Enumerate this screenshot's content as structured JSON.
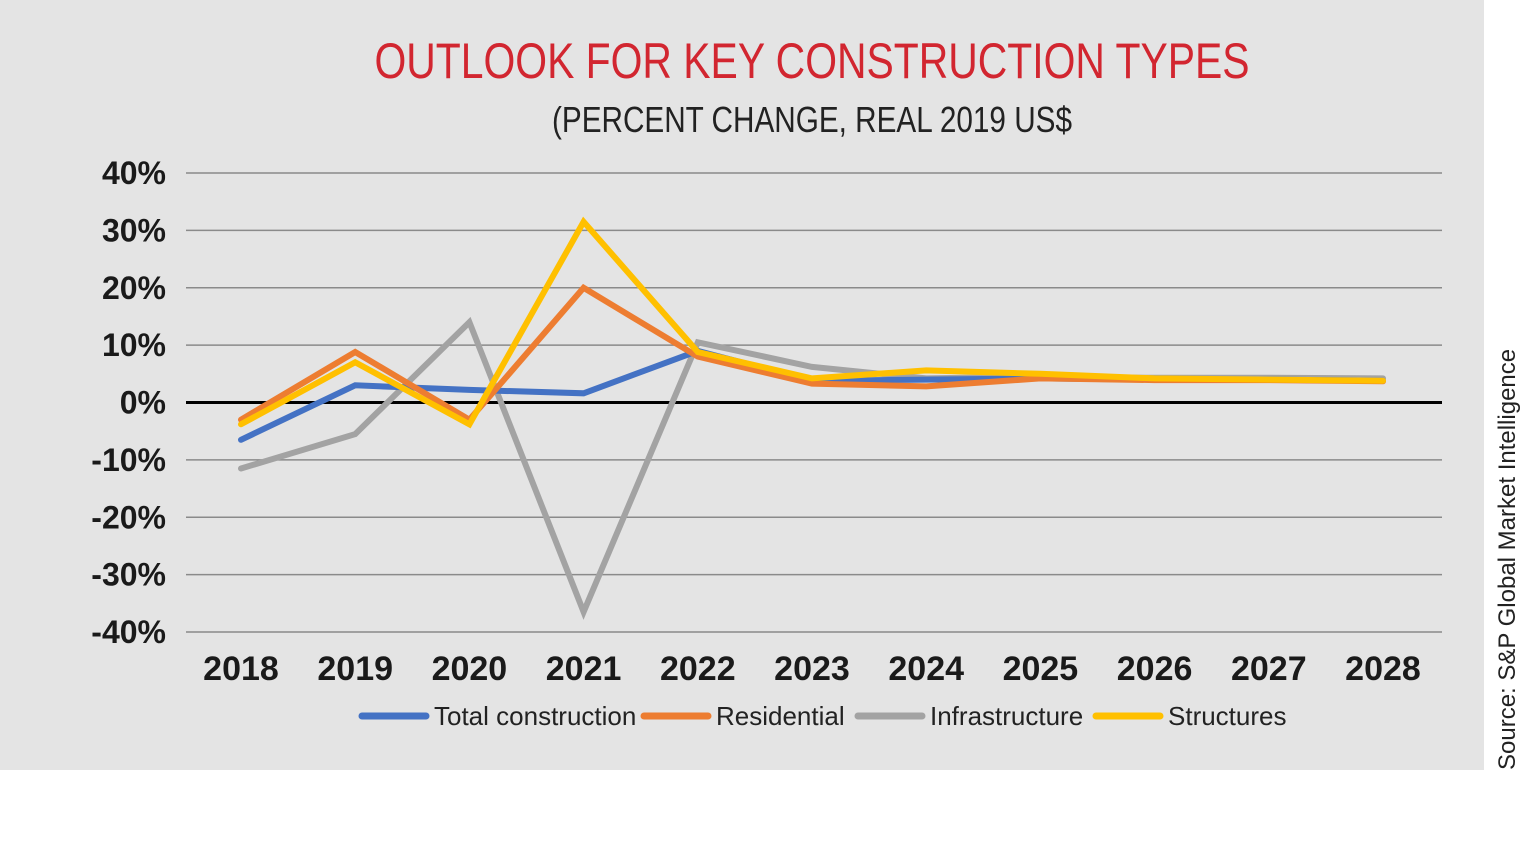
{
  "source": "Source: S&P Global Market Intelligence",
  "chart_data": {
    "type": "line",
    "title": "OUTLOOK FOR KEY CONSTRUCTION TYPES",
    "subtitle": "(PERCENT CHANGE, REAL 2019 US$",
    "xlabel": "",
    "ylabel": "",
    "categories": [
      "2018",
      "2019",
      "2020",
      "2021",
      "2022",
      "2023",
      "2024",
      "2025",
      "2026",
      "2027",
      "2028"
    ],
    "ylim": [
      -40,
      40
    ],
    "yticks": [
      40,
      30,
      20,
      10,
      0,
      -10,
      -20,
      -30,
      -40
    ],
    "ytick_labels": [
      "40%",
      "30%",
      "20%",
      "10%",
      "0%",
      "-10%",
      "-20%",
      "-30%",
      "-40%"
    ],
    "grid": true,
    "legend_position": "bottom",
    "series": [
      {
        "name": "Infrastructure",
        "color": "#a3a3a3",
        "values": [
          -11.5,
          -5.5,
          14,
          -36.5,
          10.5,
          6.2,
          4.2,
          4.5,
          4.3,
          4.3,
          4.2
        ]
      },
      {
        "name": "Total construction",
        "color": "#4472c4",
        "values": [
          -6.5,
          3.0,
          2.2,
          1.6,
          9.0,
          3.8,
          4.0,
          4.2,
          4.0,
          4.0,
          3.8
        ]
      },
      {
        "name": "Residential",
        "color": "#ed7d31",
        "values": [
          -3.0,
          8.8,
          -3.0,
          20.0,
          8.0,
          3.3,
          2.8,
          4.2,
          3.9,
          3.9,
          3.7
        ]
      },
      {
        "name": "Structures",
        "color": "#ffc000",
        "values": [
          -3.8,
          7.0,
          -3.8,
          31.5,
          8.8,
          4.2,
          5.6,
          5.0,
          4.2,
          4.0,
          3.8
        ]
      }
    ],
    "legend_order": [
      "Total construction",
      "Residential",
      "Infrastructure",
      "Structures"
    ]
  }
}
